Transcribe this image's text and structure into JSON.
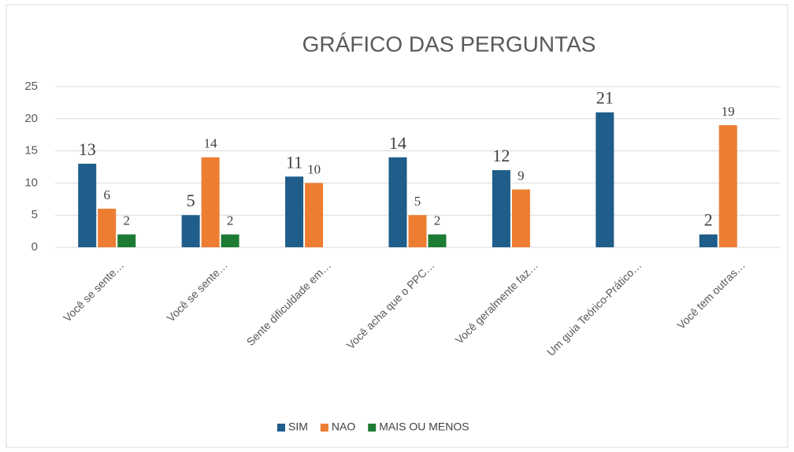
{
  "chart_data": {
    "type": "bar",
    "title": "GRÁFICO DAS PERGUNTAS",
    "categories": [
      "Você se sente…",
      "Você se sente…",
      "Sente dificuldade em…",
      "Você acha que o PPC…",
      "Você geralmente faz…",
      "Um guia Teórico-Prático…",
      "Você tem outras…"
    ],
    "series": [
      {
        "name": "SIM",
        "color": "#1f5d8a",
        "values": [
          13,
          5,
          11,
          14,
          12,
          21,
          2
        ]
      },
      {
        "name": "NAO",
        "color": "#ed7d31",
        "values": [
          6,
          14,
          10,
          5,
          9,
          null,
          19
        ]
      },
      {
        "name": "MAIS OU MENOS",
        "color": "#1e7b34",
        "values": [
          2,
          2,
          null,
          2,
          null,
          null,
          null
        ]
      }
    ],
    "ylim": [
      0,
      25
    ],
    "yticks": [
      0,
      5,
      10,
      15,
      20,
      25
    ],
    "grid": true,
    "legend": "bottom"
  }
}
